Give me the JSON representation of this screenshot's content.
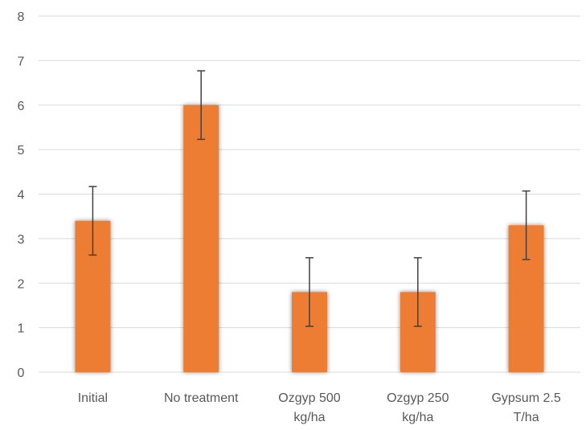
{
  "chart_data": {
    "type": "bar",
    "title": "",
    "xlabel": "",
    "ylabel": "",
    "categories": [
      [
        "Initial"
      ],
      [
        "No treatment"
      ],
      [
        "Ozgyp 500",
        "kg/ha"
      ],
      [
        "Ozgyp 250",
        "kg/ha"
      ],
      [
        "Gypsum 2.5",
        "T/ha"
      ]
    ],
    "values": [
      3.4,
      6.0,
      1.8,
      1.8,
      3.3
    ],
    "error": [
      0.77,
      0.77,
      0.77,
      0.77,
      0.77
    ],
    "ylim": [
      0,
      8
    ],
    "yticks": [
      "0",
      "1",
      "2",
      "3",
      "4",
      "5",
      "6",
      "7",
      "8"
    ],
    "grid": true,
    "legend": "none",
    "colors": {
      "bar": "#ED7D31",
      "grid": "#D9D9D9",
      "error_bar": "#404040",
      "text": "#595959"
    }
  }
}
